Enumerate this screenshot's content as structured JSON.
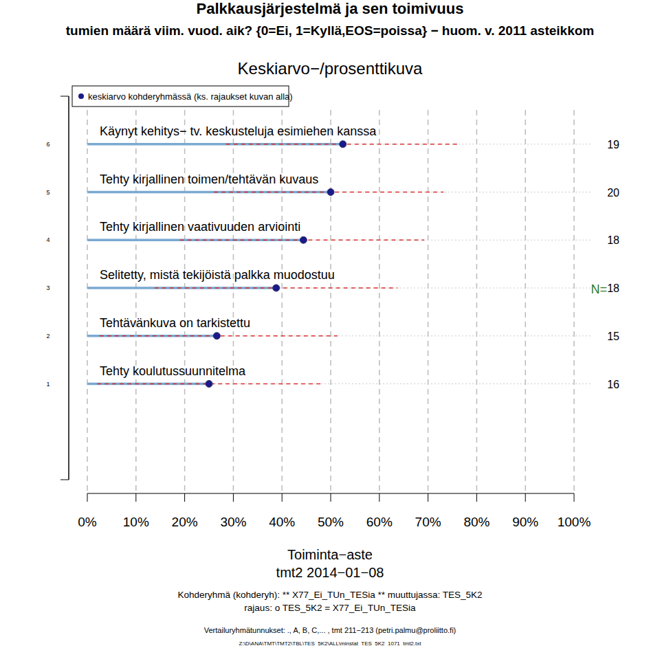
{
  "chart_data": {
    "type": "dot",
    "title": "Palkkausjärjestelmä ja sen toimivuus",
    "subtitle": "tumien määrä viim. vuod. aik? {0=Ei, 1=Kyllä,EOS=poissa} − huom. v. 2011 asteikkom",
    "plot_title": "Keskiarvo−/prosenttikuva",
    "orientation": "horizontal",
    "grid": true,
    "legend": "top-left",
    "categories": [
      "Tehty koulutussuunnitelma",
      "Tehtävänkuva on tarkistettu",
      "Selitetty, mistä tekijöistä palkka muodostuu",
      "Tehty kirjallinen vaativuuden arviointi",
      "Tehty kirjallinen toimen/tehtävän kuvaus",
      "Käynyt kehitys− tv. keskusteluja esimiehen kanssa"
    ],
    "series": [
      {
        "name": "keskiarvo kohderyhmässä (ks. rajaukset kuvan alla)",
        "color": "#1a1a8a",
        "values": [
          25.0,
          26.6,
          38.8,
          44.4,
          50.0,
          52.5
        ],
        "lower": [
          2.0,
          2.5,
          13.8,
          19.0,
          26.0,
          28.5
        ],
        "upper": [
          48.2,
          51.4,
          63.7,
          69.2,
          73.2,
          76.4
        ]
      }
    ],
    "n_label": "N=",
    "n": [
      16,
      15,
      18,
      18,
      20,
      19
    ],
    "ylim": [
      -1,
      7
    ],
    "yticks": [
      1,
      2,
      3,
      4,
      5,
      6
    ],
    "xlim": [
      0,
      100
    ],
    "xticks": [
      {
        "value": 0,
        "label": "0%"
      },
      {
        "value": 10,
        "label": "10%"
      },
      {
        "value": 20,
        "label": "20%"
      },
      {
        "value": 30,
        "label": "30%"
      },
      {
        "value": 40,
        "label": "40%"
      },
      {
        "value": 50,
        "label": "50%"
      },
      {
        "value": 60,
        "label": "60%"
      },
      {
        "value": 70,
        "label": "70%"
      },
      {
        "value": 80,
        "label": "80%"
      },
      {
        "value": 90,
        "label": "90%"
      },
      {
        "value": 100,
        "label": "100%"
      }
    ],
    "xlabel": "Toiminta−aste",
    "date_label": "tmt2 2014−01−08",
    "notes": [
      "Kohderyhmä (kohderyh): ** X77_Ei_TUn_TESia ** muuttujassa: TES_5K2",
      "rajaus: o TES_5K2 = X77_Ei_TUn_TESia",
      "Vertailuryhmätunnukset: ., A, B, C,... , tmt 211−213 (petri.palmu@proliitto.fi)",
      "Z:\\D\\ANA\\TMT\\TMT2\\TBL\\TES_5K2\\ALL\\minstat_TES_5K2_1071_tmt2.txt"
    ]
  }
}
